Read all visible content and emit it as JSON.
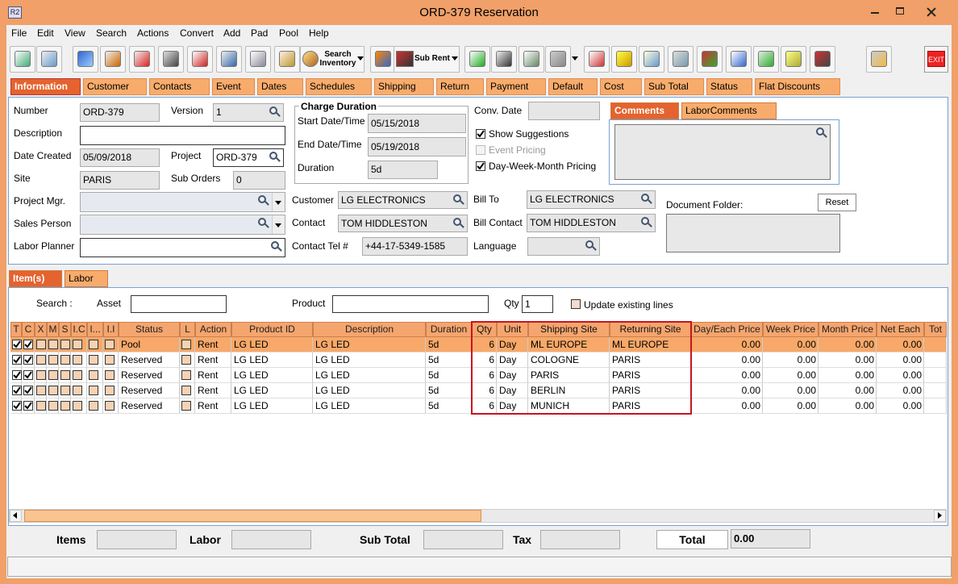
{
  "window": {
    "icon": "R2",
    "title": "ORD-379 Reservation"
  },
  "menu": [
    "File",
    "Edit",
    "View",
    "Search",
    "Actions",
    "Convert",
    "Add",
    "Pad",
    "Pool",
    "Help"
  ],
  "toolbar": {
    "search_inventory": "Search Inventory",
    "sub_rent": "Sub Rent",
    "exit": "EXIT"
  },
  "tabs": [
    "Information",
    "Customer",
    "Contacts",
    "Event",
    "Dates",
    "Schedules",
    "Shipping",
    "Return",
    "Payment",
    "Default",
    "Cost",
    "Sub Total",
    "Status",
    "Flat Discounts"
  ],
  "active_tab": 0,
  "form": {
    "number": {
      "label": "Number",
      "value": "ORD-379"
    },
    "version": {
      "label": "Version",
      "value": "1"
    },
    "description": {
      "label": "Description"
    },
    "date_created": {
      "label": "Date Created",
      "value": "05/09/2018"
    },
    "project": {
      "label": "Project",
      "value": "ORD-379"
    },
    "site": {
      "label": "Site",
      "value": "PARIS"
    },
    "sub_orders": {
      "label": "Sub Orders",
      "value": "0"
    },
    "project_mgr": {
      "label": "Project Mgr."
    },
    "sales_person": {
      "label": "Sales Person"
    },
    "labor_planner": {
      "label": "Labor Planner"
    },
    "charge_duration": {
      "title": "Charge Duration",
      "start": {
        "label": "Start Date/Time",
        "value": "05/15/2018"
      },
      "end": {
        "label": "End Date/Time",
        "value": "05/19/2018"
      },
      "duration": {
        "label": "Duration",
        "value": "5d"
      }
    },
    "customer": {
      "label": "Customer",
      "value": "LG ELECTRONICS"
    },
    "contact": {
      "label": "Contact",
      "value": "TOM HIDDLESTON"
    },
    "contact_tel": {
      "label": "Contact Tel #",
      "value": "+44-17-5349-1585"
    },
    "conv_date": {
      "label": "Conv. Date"
    },
    "options": [
      {
        "label": "Show Suggestions",
        "checked": true,
        "enabled": true
      },
      {
        "label": "Event Pricing",
        "checked": false,
        "enabled": false
      },
      {
        "label": "Day-Week-Month Pricing",
        "checked": true,
        "enabled": true
      }
    ],
    "bill_to": {
      "label": "Bill To",
      "value": "LG ELECTRONICS"
    },
    "bill_contact": {
      "label": "Bill Contact",
      "value": "TOM HIDDLESTON"
    },
    "language": {
      "label": "Language"
    },
    "comment_tabs": [
      "Comments",
      "LaborComments"
    ],
    "document_folder": {
      "label": "Document Folder:",
      "reset": "Reset"
    }
  },
  "item_tabs": [
    "Item(s)",
    "Labor"
  ],
  "search": {
    "label": "Search :",
    "asset": "Asset",
    "product": "Product",
    "qty_label": "Qty",
    "qty": "1",
    "update_existing": "Update existing lines"
  },
  "table": {
    "columns": [
      "T",
      "C",
      "X",
      "M",
      "S",
      "I.C",
      "I...",
      "I.I",
      "Status",
      "L",
      "Action",
      "Product ID",
      "Description",
      "Duration",
      "Qty",
      "Unit",
      "Shipping Site",
      "Returning Site",
      "Day/Each Price",
      "Week Price",
      "Month Price",
      "Net Each",
      "Tot"
    ],
    "rows": [
      [
        "Pool",
        "Rent",
        "LG LED",
        "LG LED",
        "5d",
        6,
        "Day",
        "ML EUROPE",
        "ML EUROPE",
        "0.00",
        "0.00",
        "0.00",
        "0.00"
      ],
      [
        "Reserved",
        "Rent",
        "LG LED",
        "LG LED",
        "5d",
        6,
        "Day",
        "COLOGNE",
        "PARIS",
        "0.00",
        "0.00",
        "0.00",
        "0.00"
      ],
      [
        "Reserved",
        "Rent",
        "LG LED",
        "LG LED",
        "5d",
        6,
        "Day",
        "PARIS",
        "PARIS",
        "0.00",
        "0.00",
        "0.00",
        "0.00"
      ],
      [
        "Reserved",
        "Rent",
        "LG LED",
        "LG LED",
        "5d",
        6,
        "Day",
        "BERLIN",
        "PARIS",
        "0.00",
        "0.00",
        "0.00",
        "0.00"
      ],
      [
        "Reserved",
        "Rent",
        "LG LED",
        "LG LED",
        "5d",
        6,
        "Day",
        "MUNICH",
        "PARIS",
        "0.00",
        "0.00",
        "0.00",
        "0.00"
      ]
    ],
    "selected_row": 0
  },
  "footer": {
    "items": "Items",
    "labor": "Labor",
    "sub_total": "Sub Total",
    "tax": "Tax",
    "total": "Total",
    "total_value": "0.00"
  }
}
